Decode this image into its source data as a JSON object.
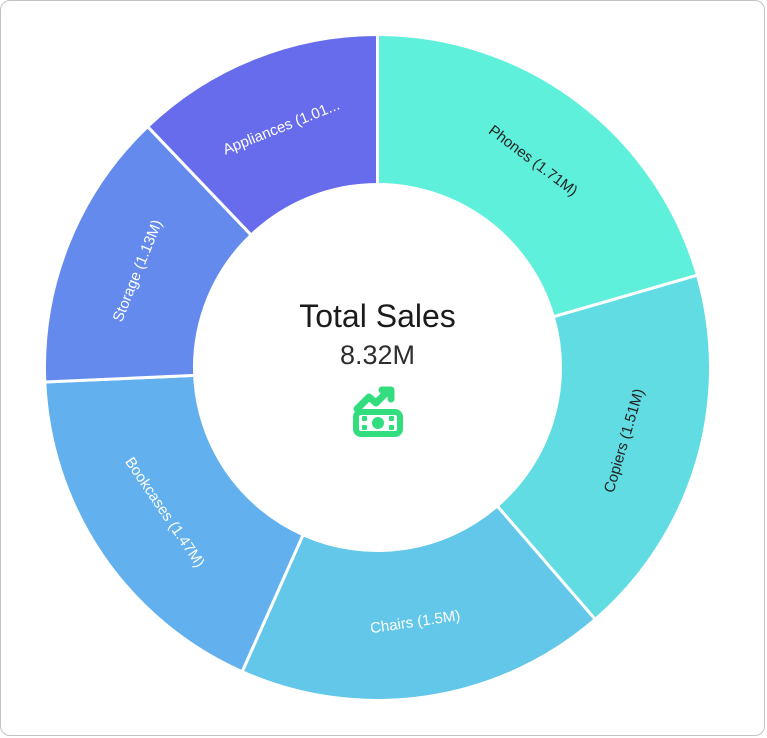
{
  "window": {
    "background": "#ffffff",
    "border_color": "#c3c3c3"
  },
  "chart_data": {
    "type": "pie",
    "subtype": "donut",
    "title": "Total Sales",
    "legend": "none",
    "label_position": "inside-tangential",
    "start_angle_deg": 0,
    "direction": "clockwise",
    "inner_radius_ratio": 0.55,
    "center": {
      "title": "Total Sales",
      "total_label": "8.32M",
      "total_value": 8.32,
      "icon": "money-growth-icon",
      "icon_color": "#31DD7D"
    },
    "series": [
      {
        "label": "Phones",
        "value": 1.71,
        "display": "Phones (1.71M)",
        "color": "#5FF0DB",
        "label_color": "#232323"
      },
      {
        "label": "Copiers",
        "value": 1.51,
        "display": "Copiers (1.51M)",
        "color": "#60DCE2",
        "label_color": "#232323"
      },
      {
        "label": "Chairs",
        "value": 1.5,
        "display": "Chairs (1.5M)",
        "color": "#62C7E9",
        "label_color": "#ffffff"
      },
      {
        "label": "Bookcases",
        "value": 1.47,
        "display": "Bookcases (1.47M)",
        "color": "#62B1EE",
        "label_color": "#ffffff"
      },
      {
        "label": "Storage",
        "value": 1.13,
        "display": "Storage (1.13M)",
        "color": "#648AEE",
        "label_color": "#ffffff"
      },
      {
        "label": "Appliances",
        "value": 1.01,
        "display": "Appliances (1.01...",
        "color": "#666CEB",
        "label_color": "#ffffff"
      }
    ]
  }
}
